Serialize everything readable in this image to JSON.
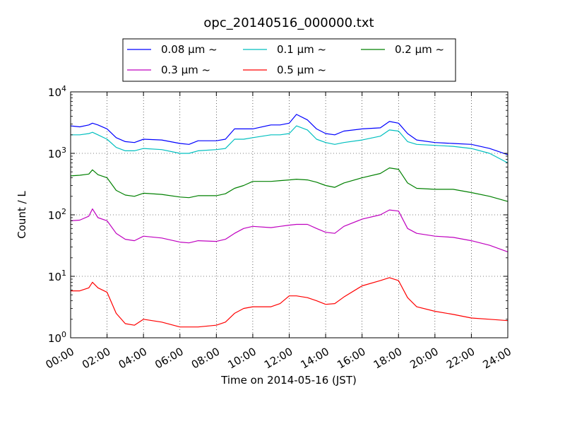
{
  "chart_data": {
    "type": "line",
    "title": "opc_20140516_000000.txt",
    "xlabel": "Time on 2014-05-16 (JST)",
    "ylabel": "Count / L",
    "x_unit": "hour of day (JST)",
    "xlim": [
      0,
      24
    ],
    "ylim": [
      1,
      10000
    ],
    "yscale": "log",
    "grid": true,
    "legend_placement": "top-center",
    "x_ticks": [
      0,
      2,
      4,
      6,
      8,
      10,
      12,
      14,
      16,
      18,
      20,
      22,
      24
    ],
    "x_tick_labels": [
      "00:00",
      "02:00",
      "04:00",
      "06:00",
      "08:00",
      "10:00",
      "12:00",
      "14:00",
      "16:00",
      "18:00",
      "20:00",
      "22:00",
      "24:00"
    ],
    "y_ticks": [
      1,
      10,
      100,
      1000,
      10000
    ],
    "y_tick_labels": [
      {
        "base": "10",
        "exp": "0"
      },
      {
        "base": "10",
        "exp": "1"
      },
      {
        "base": "10",
        "exp": "2"
      },
      {
        "base": "10",
        "exp": "3"
      },
      {
        "base": "10",
        "exp": "4"
      }
    ],
    "series": [
      {
        "name": "0.08 μm ~",
        "color": "#0000ff",
        "x": [
          0,
          0.5,
          1,
          1.2,
          1.5,
          2,
          2.5,
          3,
          3.5,
          4,
          5,
          6,
          6.5,
          7,
          8,
          8.5,
          9,
          9.5,
          10,
          11,
          11.5,
          12,
          12.4,
          13,
          13.5,
          14,
          14.5,
          15,
          16,
          17,
          17.5,
          18,
          18.5,
          19,
          20,
          21,
          22,
          23,
          24
        ],
        "y": [
          2800,
          2700,
          2900,
          3100,
          2900,
          2500,
          1800,
          1550,
          1500,
          1700,
          1650,
          1450,
          1400,
          1600,
          1600,
          1700,
          2500,
          2500,
          2500,
          2900,
          2900,
          3100,
          4300,
          3500,
          2500,
          2100,
          2000,
          2300,
          2500,
          2600,
          3300,
          3100,
          2100,
          1650,
          1500,
          1450,
          1400,
          1200,
          950
        ]
      },
      {
        "name": "0.1 μm ~",
        "color": "#00bfbf",
        "x": [
          0,
          0.5,
          1,
          1.2,
          1.5,
          2,
          2.5,
          3,
          3.5,
          4,
          5,
          6,
          6.5,
          7,
          8,
          8.5,
          9,
          9.5,
          10,
          11,
          11.5,
          12,
          12.4,
          13,
          13.5,
          14,
          14.5,
          15,
          16,
          17,
          17.5,
          18,
          18.5,
          19,
          20,
          21,
          22,
          23,
          24
        ],
        "y": [
          2000,
          2000,
          2100,
          2200,
          2000,
          1700,
          1250,
          1100,
          1100,
          1200,
          1150,
          1000,
          1000,
          1100,
          1150,
          1200,
          1700,
          1700,
          1800,
          2000,
          2000,
          2100,
          2800,
          2400,
          1700,
          1500,
          1400,
          1500,
          1650,
          1900,
          2400,
          2300,
          1550,
          1400,
          1350,
          1300,
          1200,
          1000,
          700
        ]
      },
      {
        "name": "0.2 μm ~",
        "color": "#008000",
        "x": [
          0,
          0.5,
          1,
          1.2,
          1.5,
          2,
          2.5,
          3,
          3.5,
          4,
          5,
          6,
          6.5,
          7,
          8,
          8.5,
          9,
          9.5,
          10,
          11,
          11.5,
          12,
          12.4,
          13,
          13.5,
          14,
          14.5,
          15,
          16,
          17,
          17.5,
          18,
          18.5,
          19,
          20,
          21,
          22,
          23,
          24
        ],
        "y": [
          430,
          440,
          460,
          540,
          450,
          400,
          250,
          210,
          200,
          225,
          215,
          195,
          190,
          205,
          205,
          220,
          270,
          300,
          350,
          350,
          360,
          370,
          380,
          370,
          340,
          300,
          280,
          330,
          400,
          470,
          580,
          550,
          330,
          270,
          260,
          260,
          230,
          200,
          165
        ]
      },
      {
        "name": "0.3 μm ~",
        "color": "#bf00bf",
        "x": [
          0,
          0.5,
          1,
          1.2,
          1.5,
          2,
          2.5,
          3,
          3.5,
          4,
          5,
          6,
          6.5,
          7,
          8,
          8.5,
          9,
          9.5,
          10,
          11,
          11.5,
          12,
          12.4,
          13,
          13.5,
          14,
          14.5,
          15,
          16,
          17,
          17.5,
          18,
          18.5,
          19,
          20,
          21,
          22,
          23,
          24
        ],
        "y": [
          80,
          82,
          95,
          125,
          90,
          80,
          50,
          40,
          38,
          45,
          42,
          36,
          35,
          38,
          37,
          40,
          50,
          60,
          65,
          62,
          65,
          68,
          70,
          70,
          60,
          52,
          50,
          65,
          85,
          100,
          120,
          115,
          60,
          50,
          45,
          43,
          38,
          32,
          25
        ]
      },
      {
        "name": "0.5 μm ~",
        "color": "#ff0000",
        "x": [
          0,
          0.5,
          1,
          1.2,
          1.5,
          2,
          2.5,
          3,
          3.5,
          4,
          5,
          6,
          6.5,
          7,
          8,
          8.5,
          9,
          9.5,
          10,
          11,
          11.5,
          12,
          12.4,
          13,
          13.5,
          14,
          14.5,
          15,
          16,
          17,
          17.5,
          18,
          18.5,
          19,
          20,
          21,
          22,
          23,
          24
        ],
        "y": [
          5.8,
          5.8,
          6.5,
          8.0,
          6.5,
          5.5,
          2.5,
          1.7,
          1.6,
          2.0,
          1.8,
          1.5,
          1.5,
          1.5,
          1.6,
          1.8,
          2.5,
          3.0,
          3.2,
          3.2,
          3.6,
          4.8,
          4.8,
          4.5,
          4.0,
          3.5,
          3.6,
          4.6,
          7.0,
          8.5,
          9.5,
          8.5,
          4.5,
          3.2,
          2.7,
          2.4,
          2.1,
          2.0,
          1.9
        ]
      }
    ]
  }
}
